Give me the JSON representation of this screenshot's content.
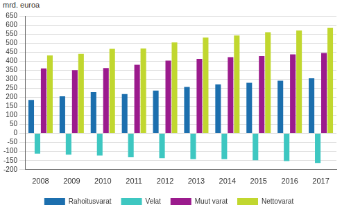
{
  "chart_data": {
    "type": "bar",
    "ylabel": "mrd. euroa",
    "categories": [
      "2008",
      "2009",
      "2010",
      "2011",
      "2012",
      "2013",
      "2014",
      "2015",
      "2016",
      "2017"
    ],
    "series": [
      {
        "name": "Rahoitusvarat",
        "color": "#1c6fae",
        "values": [
          185,
          205,
          228,
          218,
          237,
          257,
          272,
          280,
          292,
          305
        ]
      },
      {
        "name": "Velat",
        "color": "#3ec7c1",
        "values": [
          -112,
          -117,
          -122,
          -132,
          -137,
          -142,
          -142,
          -148,
          -153,
          -163
        ]
      },
      {
        "name": "Muut varat",
        "color": "#9b1b8d",
        "values": [
          360,
          350,
          362,
          380,
          403,
          412,
          422,
          428,
          437,
          445
        ]
      },
      {
        "name": "Nettovarat",
        "color": "#c1d72f",
        "values": [
          432,
          440,
          468,
          470,
          503,
          530,
          542,
          560,
          570,
          585
        ]
      }
    ],
    "ylim": [
      -200,
      650
    ],
    "yticks": [
      -200,
      -150,
      -100,
      -50,
      0,
      50,
      100,
      150,
      200,
      250,
      300,
      350,
      400,
      450,
      500,
      550,
      600,
      650
    ],
    "grid": true,
    "legend": "bottom"
  }
}
